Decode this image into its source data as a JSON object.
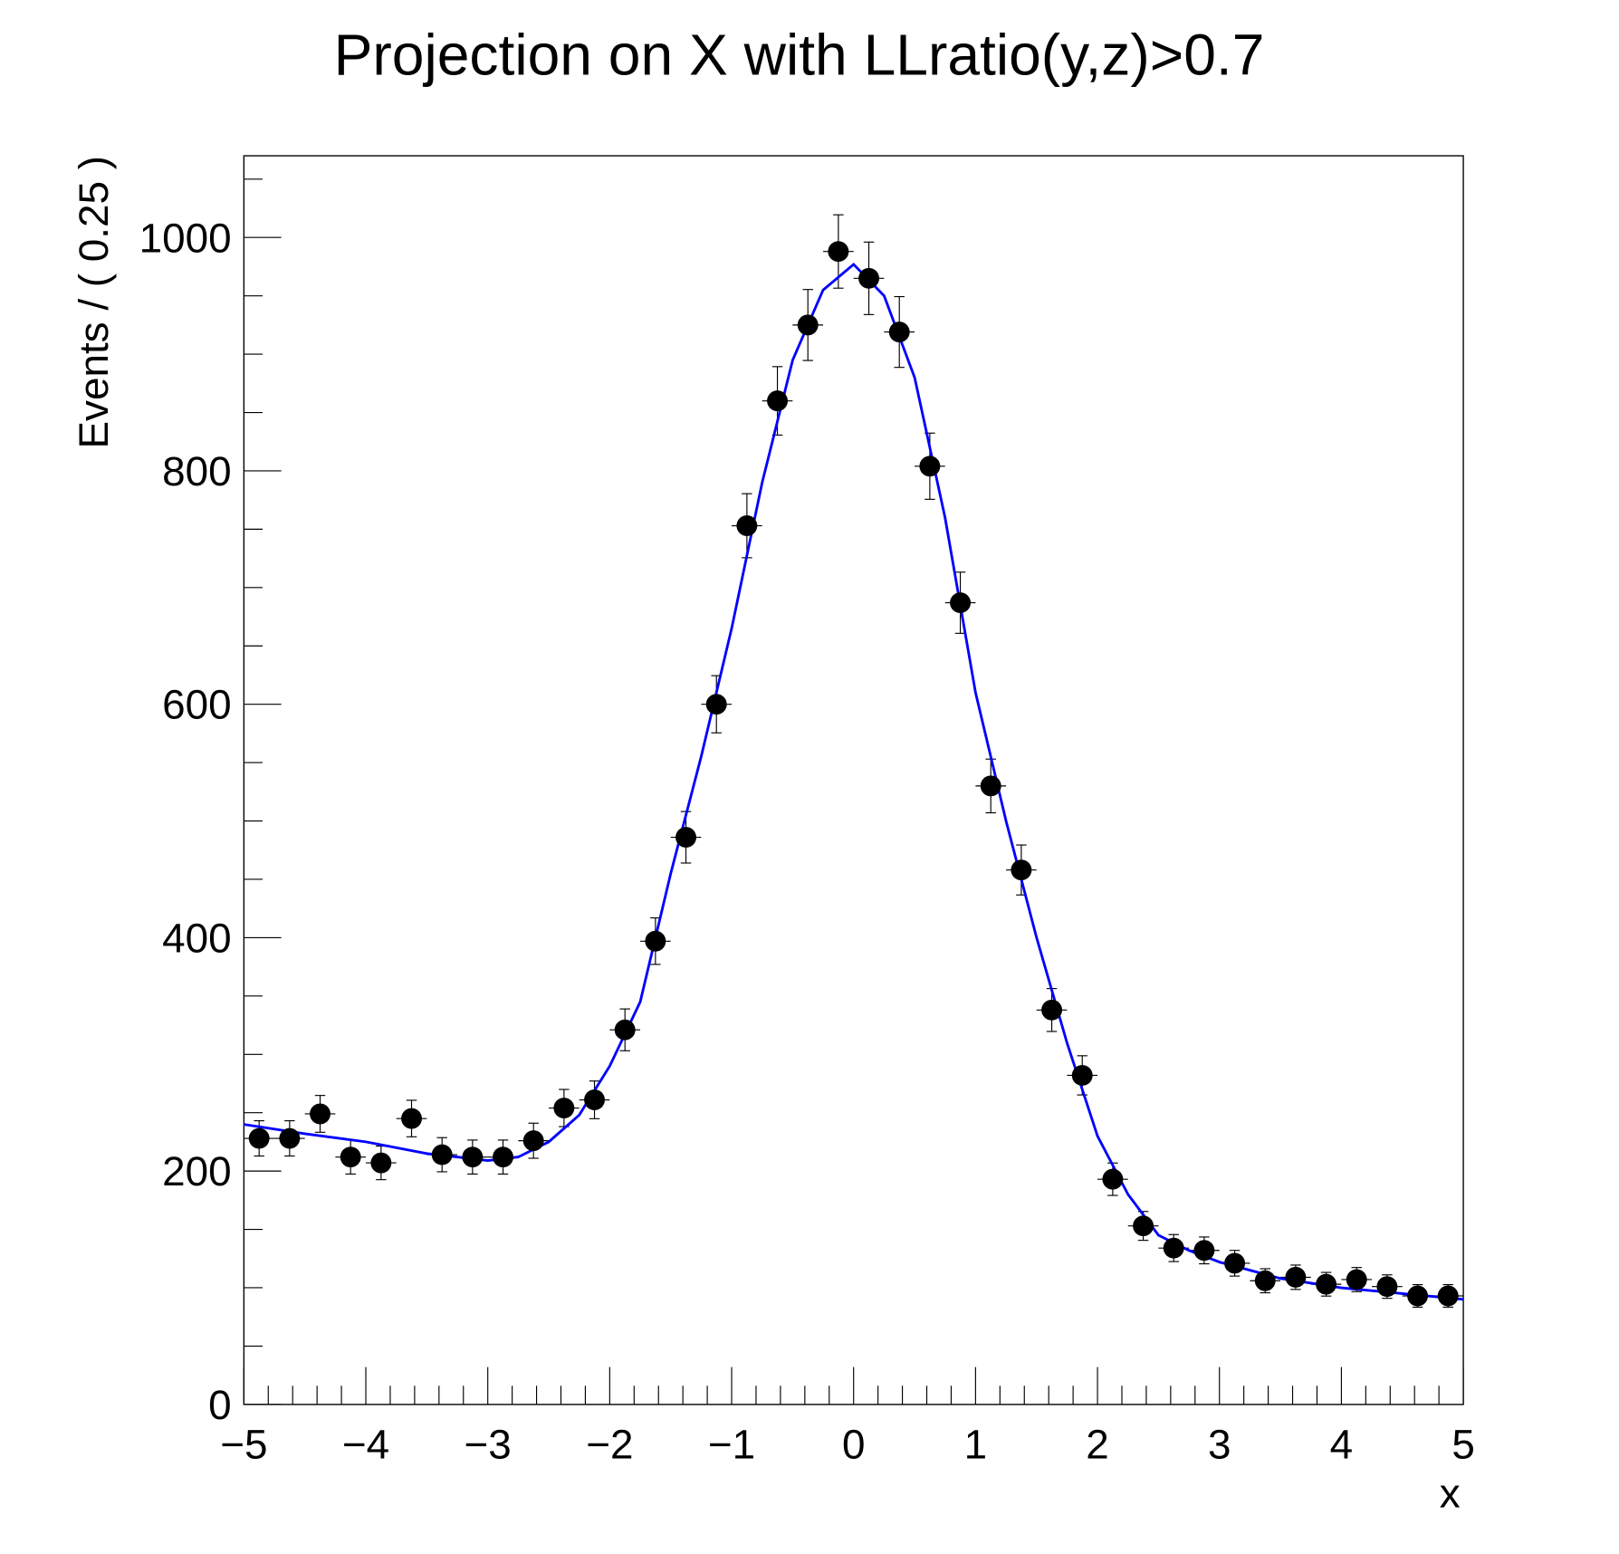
{
  "chart_data": {
    "type": "scatter",
    "title": "Projection on X with LLratio(y,z)>0.7",
    "xlabel": "x",
    "ylabel": "Events / ( 0.25 )",
    "xlim": [
      -5,
      5
    ],
    "ylim": [
      0,
      1070
    ],
    "grid": false,
    "x_tick_labels": [
      "−5",
      "−4",
      "−3",
      "−2",
      "−1",
      "0",
      "1",
      "2",
      "3",
      "4",
      "5"
    ],
    "y_tick_labels": [
      "0",
      "200",
      "400",
      "600",
      "800",
      "1000"
    ],
    "bin_width": 0.25,
    "colors": {
      "data": "#000000",
      "fit": "#0000ff"
    },
    "series": [
      {
        "kind": "data-points-with-errors",
        "x": [
          -4.875,
          -4.625,
          -4.375,
          -4.125,
          -3.875,
          -3.625,
          -3.375,
          -3.125,
          -2.875,
          -2.625,
          -2.375,
          -2.125,
          -1.875,
          -1.625,
          -1.375,
          -1.125,
          -0.875,
          -0.625,
          -0.375,
          -0.125,
          0.125,
          0.375,
          0.625,
          0.875,
          1.125,
          1.375,
          1.625,
          1.875,
          2.125,
          2.375,
          2.625,
          2.875,
          3.125,
          3.375,
          3.625,
          3.875,
          4.125,
          4.375,
          4.625,
          4.875
        ],
        "y": [
          228,
          228,
          249,
          212,
          207,
          245,
          214,
          212,
          212,
          226,
          254,
          261,
          321,
          397,
          486,
          600,
          753,
          860,
          925,
          988,
          965,
          919,
          804,
          687,
          530,
          458,
          338,
          282,
          193,
          153,
          134,
          132,
          121,
          106,
          109,
          103,
          107,
          101,
          93,
          93
        ]
      },
      {
        "kind": "fit-curve",
        "x": [
          -5,
          -4.5,
          -4,
          -3.5,
          -3,
          -2.75,
          -2.5,
          -2.25,
          -2,
          -1.75,
          -1.5,
          -1.25,
          -1,
          -0.75,
          -0.5,
          -0.25,
          0,
          0.25,
          0.5,
          0.75,
          1,
          1.25,
          1.5,
          1.75,
          2,
          2.25,
          2.5,
          2.75,
          3,
          3.5,
          4,
          4.5,
          5
        ],
        "y": [
          240,
          232,
          225,
          215,
          209,
          212,
          225,
          248,
          290,
          345,
          455,
          555,
          665,
          790,
          895,
          955,
          977,
          950,
          880,
          760,
          610,
          500,
          400,
          310,
          230,
          180,
          145,
          132,
          122,
          108,
          100,
          95,
          90
        ]
      }
    ]
  }
}
